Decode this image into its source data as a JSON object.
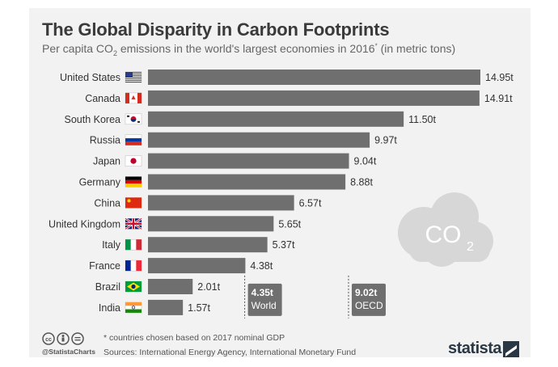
{
  "header": {
    "title": "The Global Disparity in Carbon Footprints",
    "subtitle_pre": "Per capita CO",
    "subtitle_sub": "2",
    "subtitle_mid": " emissions in the world's largest economies in 2016",
    "subtitle_sup": "*",
    "subtitle_post": " (in metric tons)"
  },
  "chart_data": {
    "type": "bar",
    "orientation": "horizontal",
    "categories": [
      "United States",
      "Canada",
      "South Korea",
      "Russia",
      "Japan",
      "Germany",
      "China",
      "United Kingdom",
      "Italy",
      "France",
      "Brazil",
      "India"
    ],
    "values": [
      14.95,
      14.91,
      11.5,
      9.97,
      9.04,
      8.88,
      6.57,
      5.65,
      5.37,
      4.38,
      2.01,
      1.57
    ],
    "value_labels": [
      "14.95t",
      "14.91t",
      "11.50t",
      "9.97t",
      "9.04t",
      "8.88t",
      "6.57t",
      "5.65t",
      "5.37t",
      "4.38t",
      "2.01t",
      "1.57t"
    ],
    "flags": [
      "us-flag-icon",
      "ca-flag-icon",
      "kr-flag-icon",
      "ru-flag-icon",
      "jp-flag-icon",
      "de-flag-icon",
      "cn-flag-icon",
      "gb-flag-icon",
      "it-flag-icon",
      "fr-flag-icon",
      "br-flag-icon",
      "in-flag-icon"
    ],
    "xlim": [
      0,
      15
    ],
    "bar_color": "#6f6f6f",
    "reference_lines": [
      {
        "value": 4.35,
        "value_label": "4.35t",
        "label": "World"
      },
      {
        "value": 9.02,
        "value_label": "9.02t",
        "label": "OECD"
      }
    ],
    "decoration": {
      "text": "CO",
      "sub": "2"
    }
  },
  "footer": {
    "note": "* countries chosen based on 2017 nominal GDP",
    "sources": "Sources: International Energy Agency, International Monetary Fund",
    "handle": "@StatistaCharts",
    "brand": "statista"
  }
}
